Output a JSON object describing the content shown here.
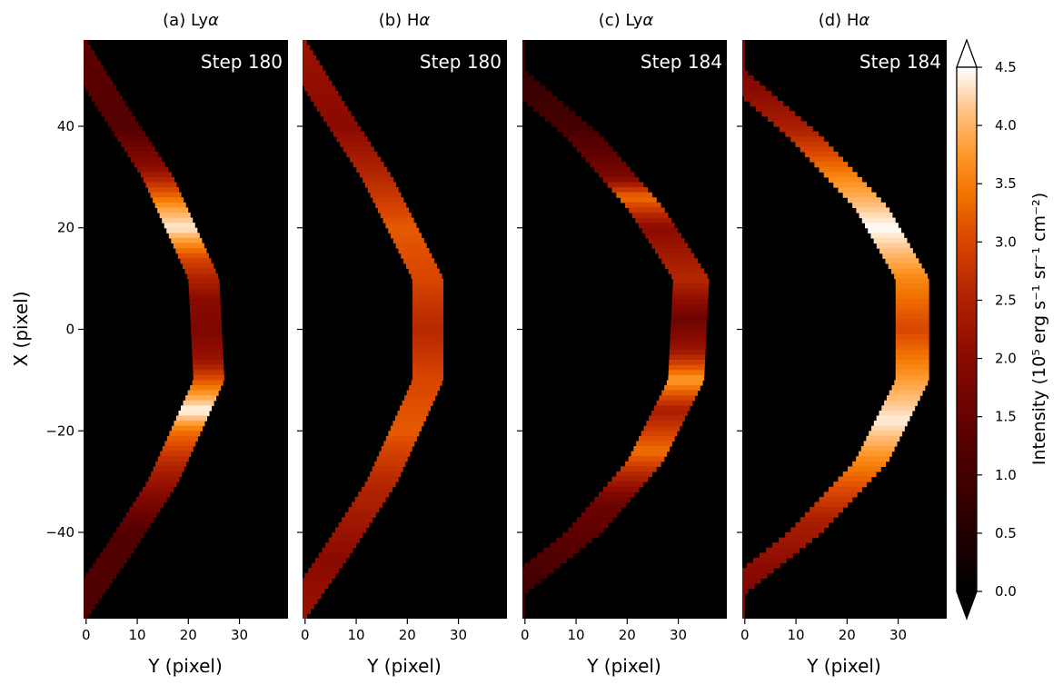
{
  "panels": [
    {
      "title_prefix": "(a) Ly",
      "title_greek": "α",
      "step": "Step 180"
    },
    {
      "title_prefix": "(b) H",
      "title_greek": "α",
      "step": "Step 180"
    },
    {
      "title_prefix": "(c) Ly",
      "title_greek": "α",
      "step": "Step 184"
    },
    {
      "title_prefix": "(d) H",
      "title_greek": "α",
      "step": "Step 184"
    }
  ],
  "axes": {
    "xlabel": "Y (pixel)",
    "ylabel": "X (pixel)",
    "x_ticks": [
      0,
      10,
      20,
      30
    ],
    "y_ticks": [
      40,
      20,
      0,
      -20,
      -40
    ],
    "y_tick_labels": [
      "40",
      "20",
      "0",
      "−20",
      "−40"
    ],
    "xlim": [
      -0.5,
      39.5
    ],
    "ylim": [
      -57,
      57
    ]
  },
  "colorbar": {
    "label": "Intensity (10⁵ erg s⁻¹ sr⁻¹ cm⁻²)",
    "ticks": [
      0.0,
      0.5,
      1.0,
      1.5,
      2.0,
      2.5,
      3.0,
      3.5,
      4.0,
      4.5
    ],
    "tick_labels": [
      "0.0",
      "0.5",
      "1.0",
      "1.5",
      "2.0",
      "2.5",
      "3.0",
      "3.5",
      "4.0",
      "4.5"
    ],
    "range": [
      0.0,
      4.5
    ],
    "extend": "both",
    "colormap": "gist_heat"
  },
  "chart_data": [
    {
      "type": "heatmap",
      "title": "(a) Lyα",
      "annotation": "Step 180",
      "xlabel": "Y (pixel)",
      "ylabel": "X (pixel)",
      "xlim": [
        -0.5,
        39.5
      ],
      "ylim": [
        -57,
        57
      ],
      "arc": {
        "outer_x": [
          [
            57,
            0
          ],
          [
            44,
            8
          ],
          [
            30,
            17
          ],
          [
            10,
            26
          ],
          [
            -10,
            27
          ],
          [
            -30,
            18
          ],
          [
            -44,
            9
          ],
          [
            -57,
            0
          ]
        ],
        "width": 6
      },
      "intensity_profile": [
        [
          57,
          1.4
        ],
        [
          40,
          1.2
        ],
        [
          32,
          2.0
        ],
        [
          24,
          3.8
        ],
        [
          20,
          4.4
        ],
        [
          14,
          3.0
        ],
        [
          6,
          2.0
        ],
        [
          0,
          1.8
        ],
        [
          -6,
          2.2
        ],
        [
          -12,
          3.6
        ],
        [
          -16,
          4.5
        ],
        [
          -20,
          3.4
        ],
        [
          -28,
          2.4
        ],
        [
          -40,
          1.2
        ],
        [
          -57,
          1.1
        ]
      ]
    },
    {
      "type": "heatmap",
      "title": "(b) Hα",
      "annotation": "Step 180",
      "xlabel": "Y (pixel)",
      "ylabel": "X (pixel)",
      "xlim": [
        -0.5,
        39.5
      ],
      "ylim": [
        -57,
        57
      ],
      "arc": {
        "outer_x": [
          [
            57,
            0
          ],
          [
            44,
            8
          ],
          [
            30,
            17
          ],
          [
            10,
            27
          ],
          [
            -10,
            27
          ],
          [
            -30,
            18
          ],
          [
            -44,
            9
          ],
          [
            -57,
            0
          ]
        ],
        "width": 6
      },
      "intensity_profile": [
        [
          57,
          2.2
        ],
        [
          40,
          2.0
        ],
        [
          30,
          2.6
        ],
        [
          20,
          3.2
        ],
        [
          10,
          3.0
        ],
        [
          0,
          2.6
        ],
        [
          -10,
          3.0
        ],
        [
          -20,
          3.2
        ],
        [
          -30,
          2.6
        ],
        [
          -45,
          2.0
        ],
        [
          -57,
          2.2
        ]
      ]
    },
    {
      "type": "heatmap",
      "title": "(c) Lyα",
      "annotation": "Step 184",
      "xlabel": "Y (pixel)",
      "ylabel": "X (pixel)",
      "xlim": [
        -0.5,
        39.5
      ],
      "ylim": [
        -57,
        57
      ],
      "arc": {
        "outer_x": [
          [
            51,
            0
          ],
          [
            38,
            15
          ],
          [
            24,
            27
          ],
          [
            10,
            36
          ],
          [
            -10,
            35
          ],
          [
            -26,
            27
          ],
          [
            -40,
            15
          ],
          [
            -52,
            0
          ]
        ],
        "width": 7
      },
      "intensity_profile": [
        [
          51,
          0.8
        ],
        [
          40,
          1.0
        ],
        [
          30,
          1.8
        ],
        [
          26,
          3.4
        ],
        [
          20,
          2.0
        ],
        [
          10,
          2.6
        ],
        [
          2,
          1.6
        ],
        [
          -4,
          2.2
        ],
        [
          -10,
          3.8
        ],
        [
          -16,
          2.4
        ],
        [
          -24,
          3.4
        ],
        [
          -34,
          1.6
        ],
        [
          -52,
          0.9
        ]
      ]
    },
    {
      "type": "heatmap",
      "title": "(d) Hα",
      "annotation": "Step 184",
      "xlabel": "Y (pixel)",
      "ylabel": "X (pixel)",
      "xlim": [
        -0.5,
        39.5
      ],
      "ylim": [
        -57,
        57
      ],
      "arc": {
        "outer_x": [
          [
            51,
            0
          ],
          [
            38,
            15
          ],
          [
            24,
            28
          ],
          [
            10,
            36
          ],
          [
            -10,
            36
          ],
          [
            -26,
            28
          ],
          [
            -40,
            15
          ],
          [
            -52,
            0
          ]
        ],
        "width": 6.5
      },
      "intensity_profile": [
        [
          51,
          1.8
        ],
        [
          40,
          2.4
        ],
        [
          30,
          3.6
        ],
        [
          20,
          4.5
        ],
        [
          10,
          3.6
        ],
        [
          0,
          3.0
        ],
        [
          -10,
          3.8
        ],
        [
          -18,
          4.4
        ],
        [
          -26,
          3.6
        ],
        [
          -38,
          2.4
        ],
        [
          -52,
          1.8
        ]
      ]
    }
  ]
}
